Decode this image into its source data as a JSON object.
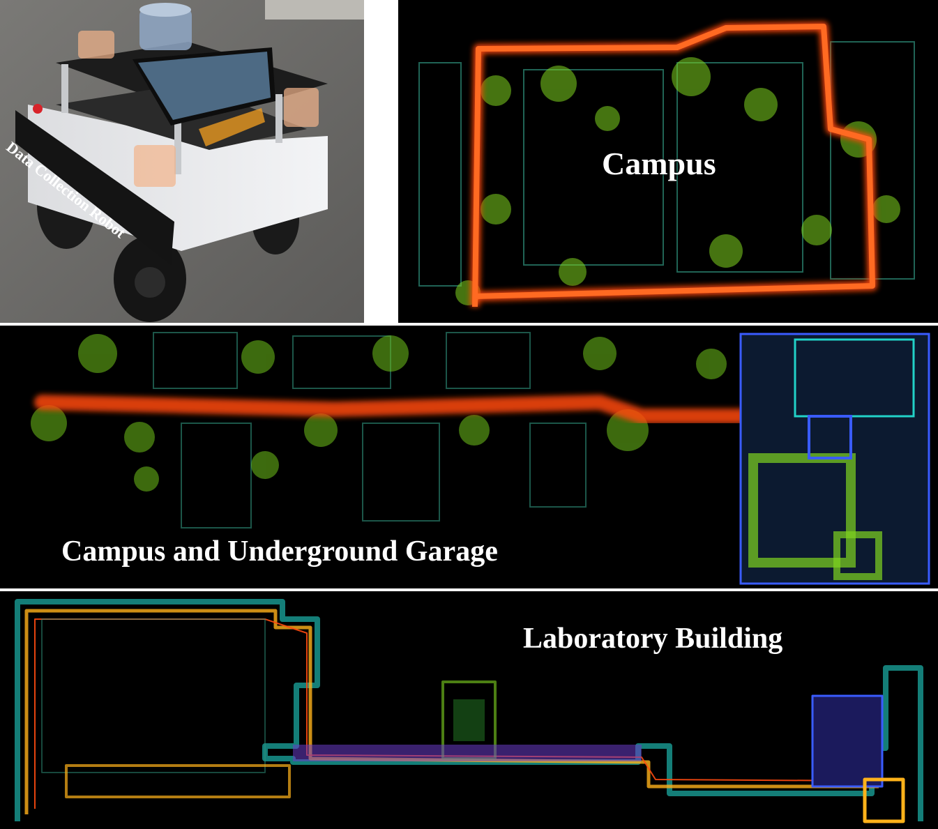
{
  "panels": {
    "robot": {
      "label": "Data Collection Robot"
    },
    "campus": {
      "label": "Campus"
    },
    "garage": {
      "label": "Campus and Underground Garage"
    },
    "lab": {
      "label": "Laboratory Building"
    }
  },
  "colors": {
    "trajectory": "#ff4a10",
    "vegetation": "#7fd41f",
    "structure_blue": "#3a5cff",
    "structure_cyan": "#22d2c8",
    "background": "#000000",
    "robot_body": "#e9eaec",
    "robot_bumper": "#151515",
    "sensor_highlight": "#f2b48a"
  }
}
